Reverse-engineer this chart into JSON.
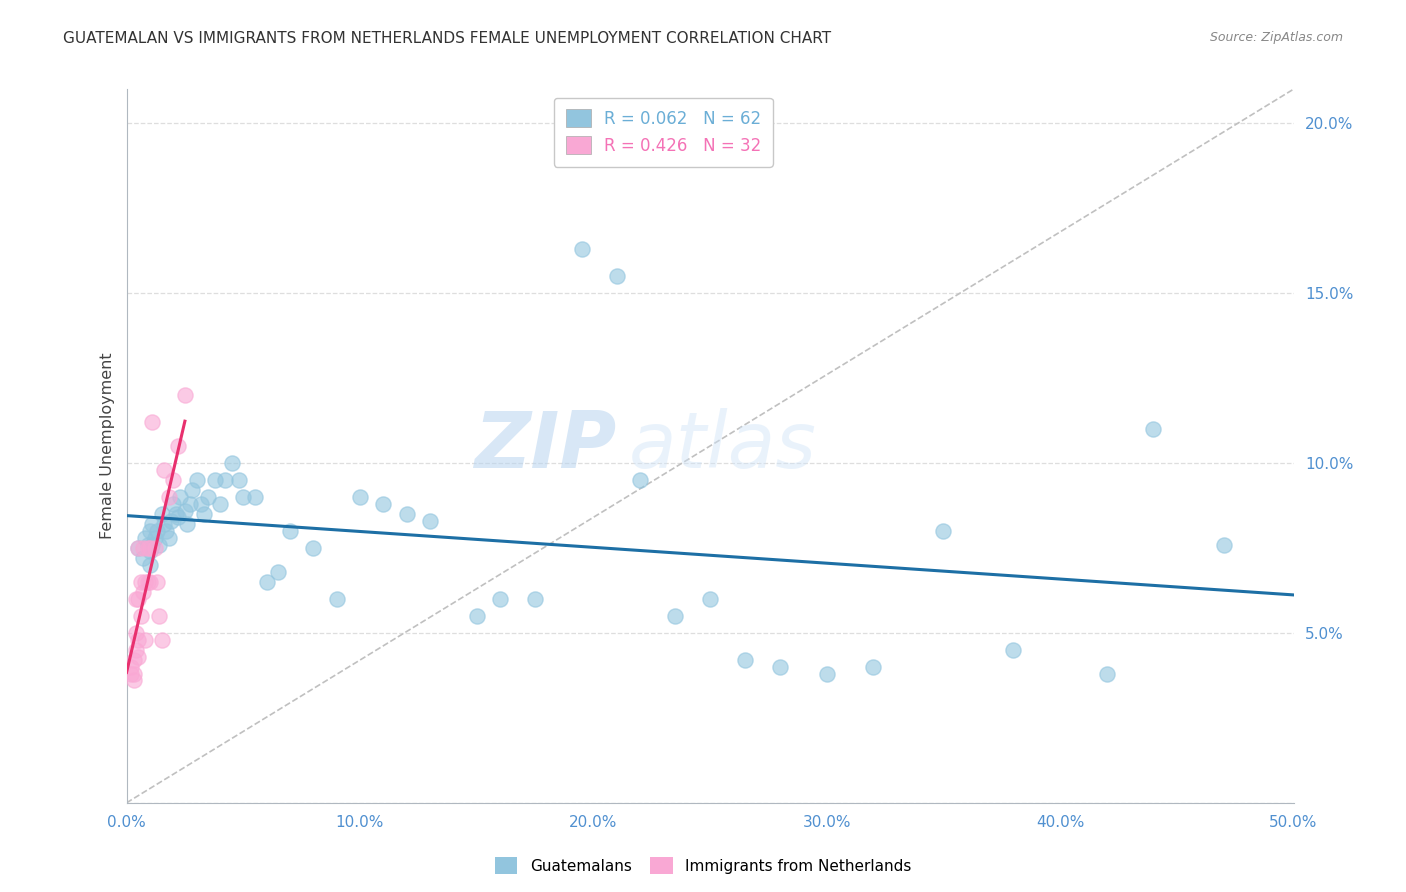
{
  "title": "GUATEMALAN VS IMMIGRANTS FROM NETHERLANDS FEMALE UNEMPLOYMENT CORRELATION CHART",
  "source": "Source: ZipAtlas.com",
  "xlabel": "",
  "ylabel": "Female Unemployment",
  "xlim": [
    0,
    0.5
  ],
  "ylim": [
    0,
    0.21
  ],
  "xticks": [
    0.0,
    0.1,
    0.2,
    0.3,
    0.4,
    0.5
  ],
  "xticklabels": [
    "0.0%",
    "10.0%",
    "20.0%",
    "30.0%",
    "40.0%",
    "50.0%"
  ],
  "yticks_right": [
    0.0,
    0.05,
    0.1,
    0.15,
    0.2
  ],
  "yticklabels_right": [
    "",
    "5.0%",
    "10.0%",
    "15.0%",
    "20.0%"
  ],
  "legend_entries": [
    {
      "label": "R = 0.062   N = 62",
      "color": "#6baed6"
    },
    {
      "label": "R = 0.426   N = 32",
      "color": "#f472b6"
    }
  ],
  "watermark_zip": "ZIP",
  "watermark_atlas": "atlas",
  "guatemalan_x": [
    0.005,
    0.007,
    0.008,
    0.009,
    0.01,
    0.01,
    0.01,
    0.011,
    0.011,
    0.012,
    0.013,
    0.014,
    0.015,
    0.016,
    0.017,
    0.018,
    0.019,
    0.02,
    0.021,
    0.022,
    0.023,
    0.025,
    0.026,
    0.027,
    0.028,
    0.03,
    0.032,
    0.033,
    0.035,
    0.038,
    0.04,
    0.042,
    0.045,
    0.048,
    0.05,
    0.055,
    0.06,
    0.065,
    0.07,
    0.08,
    0.09,
    0.1,
    0.11,
    0.12,
    0.13,
    0.15,
    0.16,
    0.175,
    0.195,
    0.21,
    0.22,
    0.235,
    0.25,
    0.265,
    0.28,
    0.3,
    0.32,
    0.35,
    0.38,
    0.42,
    0.44,
    0.47
  ],
  "guatemalan_y": [
    0.075,
    0.072,
    0.078,
    0.076,
    0.08,
    0.074,
    0.07,
    0.082,
    0.076,
    0.078,
    0.08,
    0.076,
    0.085,
    0.082,
    0.08,
    0.078,
    0.083,
    0.088,
    0.085,
    0.084,
    0.09,
    0.086,
    0.082,
    0.088,
    0.092,
    0.095,
    0.088,
    0.085,
    0.09,
    0.095,
    0.088,
    0.095,
    0.1,
    0.095,
    0.09,
    0.09,
    0.065,
    0.068,
    0.08,
    0.075,
    0.06,
    0.09,
    0.088,
    0.085,
    0.083,
    0.055,
    0.06,
    0.06,
    0.163,
    0.155,
    0.095,
    0.055,
    0.06,
    0.042,
    0.04,
    0.038,
    0.04,
    0.08,
    0.045,
    0.038,
    0.11,
    0.076
  ],
  "netherlands_x": [
    0.002,
    0.002,
    0.003,
    0.003,
    0.003,
    0.004,
    0.004,
    0.004,
    0.005,
    0.005,
    0.005,
    0.005,
    0.006,
    0.006,
    0.007,
    0.007,
    0.008,
    0.008,
    0.009,
    0.009,
    0.01,
    0.01,
    0.011,
    0.012,
    0.013,
    0.014,
    0.015,
    0.016,
    0.018,
    0.02,
    0.022,
    0.025
  ],
  "netherlands_y": [
    0.04,
    0.038,
    0.042,
    0.038,
    0.036,
    0.06,
    0.05,
    0.045,
    0.075,
    0.06,
    0.048,
    0.043,
    0.065,
    0.055,
    0.075,
    0.062,
    0.065,
    0.048,
    0.075,
    0.065,
    0.075,
    0.065,
    0.112,
    0.075,
    0.065,
    0.055,
    0.048,
    0.098,
    0.09,
    0.095,
    0.105,
    0.12
  ],
  "blue_color": "#92c5de",
  "pink_color": "#f9a8d4",
  "blue_line_color": "#1d6fa5",
  "pink_line_color": "#e8306e",
  "diag_line_color": "#c0c0c0",
  "grid_color": "#dedede",
  "title_color": "#333333",
  "axis_color": "#5090d0"
}
